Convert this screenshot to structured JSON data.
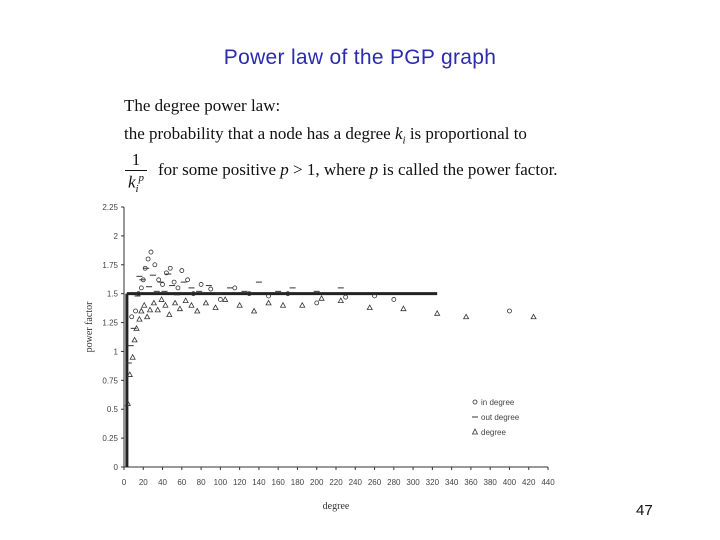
{
  "slide": {
    "title": "Power law of the PGP graph",
    "page_number": "47"
  },
  "text": {
    "line1": "The degree power law:",
    "line2_pre": "the probability that a node has a degree",
    "line2_var": "k",
    "line2_sub": "i",
    "line2_post": "is proportional to",
    "frac_num": "1",
    "frac_den_var": "k",
    "frac_den_sub": "i",
    "frac_den_sup": "p",
    "line3_a": "for some positive",
    "line3_b": "p",
    "line3_c": "> 1, where",
    "line3_d": "p",
    "line3_e": "is called the power factor."
  },
  "chart_data": {
    "type": "scatter",
    "xlabel": "degree",
    "ylabel": "power factor",
    "xlim": [
      0,
      440
    ],
    "ylim": [
      0,
      2.25
    ],
    "x_ticks": [
      "0",
      "20",
      "40",
      "60",
      "80",
      "100",
      "120",
      "140",
      "160",
      "180",
      "200",
      "220",
      "240",
      "260",
      "280",
      "300",
      "320",
      "340",
      "360",
      "380",
      "400",
      "420",
      "440"
    ],
    "y_ticks": [
      "0",
      "0.25",
      "0.5",
      "0.75",
      "1",
      "1.25",
      "1.5",
      "1.75",
      "2",
      "2.25"
    ],
    "legend": [
      "in degree",
      "out degree",
      "degree"
    ],
    "legend_position": "bottom-right",
    "reference_line": {
      "segments": [
        {
          "x": [
            3,
            3
          ],
          "y": [
            0,
            1.5
          ]
        },
        {
          "x": [
            3,
            325
          ],
          "y": [
            1.5,
            1.5
          ]
        }
      ]
    },
    "series": [
      {
        "name": "in degree",
        "marker": "circle",
        "points": [
          [
            8,
            1.3
          ],
          [
            12,
            1.35
          ],
          [
            15,
            1.5
          ],
          [
            18,
            1.55
          ],
          [
            20,
            1.62
          ],
          [
            22,
            1.72
          ],
          [
            25,
            1.8
          ],
          [
            28,
            1.86
          ],
          [
            32,
            1.75
          ],
          [
            36,
            1.62
          ],
          [
            40,
            1.58
          ],
          [
            44,
            1.68
          ],
          [
            48,
            1.72
          ],
          [
            52,
            1.6
          ],
          [
            56,
            1.55
          ],
          [
            60,
            1.7
          ],
          [
            66,
            1.62
          ],
          [
            72,
            1.5
          ],
          [
            80,
            1.58
          ],
          [
            90,
            1.54
          ],
          [
            100,
            1.45
          ],
          [
            115,
            1.55
          ],
          [
            130,
            1.5
          ],
          [
            150,
            1.48
          ],
          [
            170,
            1.5
          ],
          [
            200,
            1.42
          ],
          [
            230,
            1.47
          ],
          [
            260,
            1.48
          ],
          [
            280,
            1.45
          ],
          [
            400,
            1.35
          ]
        ]
      },
      {
        "name": "out degree",
        "marker": "dash",
        "points": [
          [
            5,
            0.9
          ],
          [
            7,
            1.05
          ],
          [
            10,
            1.2
          ],
          [
            14,
            1.48
          ],
          [
            16,
            1.65
          ],
          [
            19,
            1.62
          ],
          [
            23,
            1.72
          ],
          [
            26,
            1.56
          ],
          [
            30,
            1.66
          ],
          [
            34,
            1.52
          ],
          [
            38,
            1.6
          ],
          [
            42,
            1.52
          ],
          [
            46,
            1.67
          ],
          [
            50,
            1.57
          ],
          [
            55,
            1.49
          ],
          [
            62,
            1.6
          ],
          [
            70,
            1.55
          ],
          [
            78,
            1.52
          ],
          [
            88,
            1.57
          ],
          [
            98,
            1.5
          ],
          [
            110,
            1.55
          ],
          [
            125,
            1.52
          ],
          [
            140,
            1.6
          ],
          [
            160,
            1.52
          ],
          [
            175,
            1.55
          ],
          [
            200,
            1.52
          ],
          [
            225,
            1.55
          ]
        ]
      },
      {
        "name": "degree",
        "marker": "triangle",
        "points": [
          [
            4,
            0.55
          ],
          [
            6,
            0.8
          ],
          [
            9,
            0.95
          ],
          [
            11,
            1.1
          ],
          [
            13,
            1.2
          ],
          [
            16,
            1.28
          ],
          [
            18,
            1.35
          ],
          [
            21,
            1.4
          ],
          [
            24,
            1.3
          ],
          [
            27,
            1.36
          ],
          [
            31,
            1.42
          ],
          [
            35,
            1.36
          ],
          [
            39,
            1.45
          ],
          [
            43,
            1.4
          ],
          [
            47,
            1.32
          ],
          [
            53,
            1.42
          ],
          [
            58,
            1.37
          ],
          [
            64,
            1.44
          ],
          [
            70,
            1.4
          ],
          [
            76,
            1.35
          ],
          [
            85,
            1.42
          ],
          [
            95,
            1.38
          ],
          [
            105,
            1.45
          ],
          [
            120,
            1.4
          ],
          [
            135,
            1.35
          ],
          [
            150,
            1.42
          ],
          [
            165,
            1.4
          ],
          [
            185,
            1.4
          ],
          [
            205,
            1.46
          ],
          [
            225,
            1.44
          ],
          [
            255,
            1.38
          ],
          [
            290,
            1.37
          ],
          [
            325,
            1.33
          ],
          [
            355,
            1.3
          ],
          [
            425,
            1.3
          ]
        ]
      }
    ]
  }
}
